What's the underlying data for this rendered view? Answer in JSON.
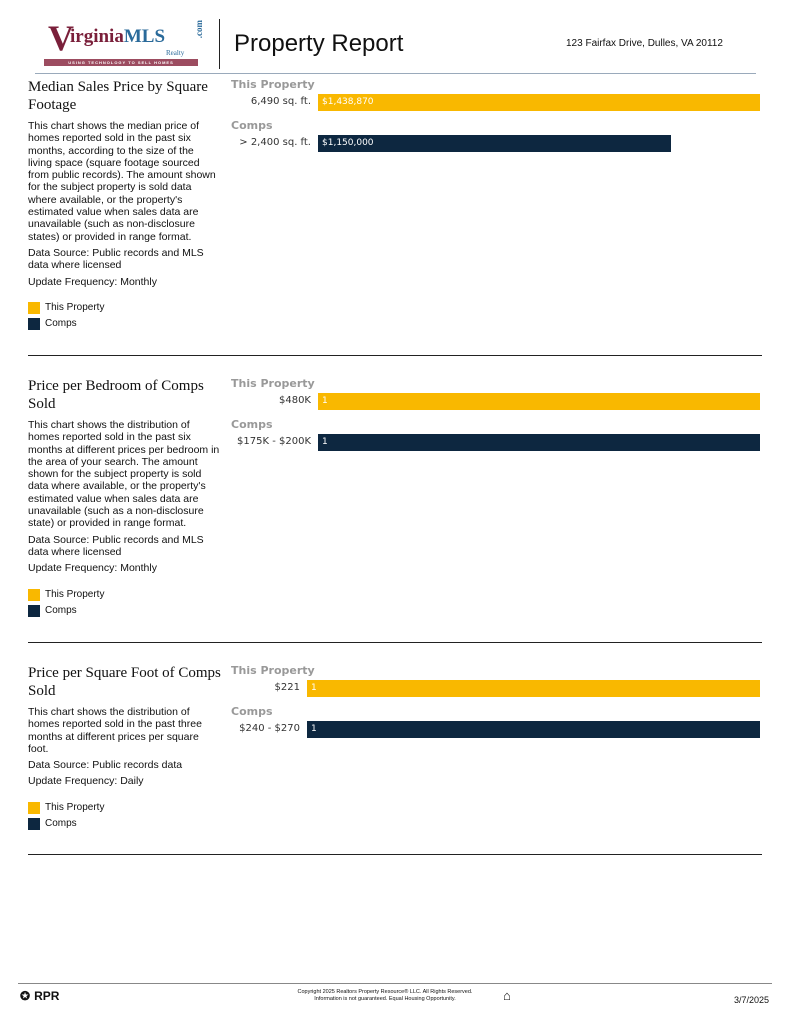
{
  "header": {
    "logo_text": "VirginiaMLS.com Realty",
    "logo_tagline": "USING TECHNOLOGY TO SELL HOMES",
    "title": "Property Report",
    "address": "123 Fairfax Drive, Dulles, VA 20112"
  },
  "colors": {
    "this_property": "#F9B800",
    "comps": "#0D2740"
  },
  "legend": {
    "this_property": "This Property",
    "comps": "Comps"
  },
  "sections": [
    {
      "title": "Median Sales Price by Square Footage",
      "description": "This chart shows the median price of homes reported sold in the past six months, according to the size of the living space (square footage sourced from public records). The amount shown for the subject property is sold data where available, or the property's estimated value when sales data are unavailable (such as non-disclosure states) or provided in range format.",
      "source": "Data Source: Public records and MLS data where licensed",
      "frequency": "Update Frequency: Monthly"
    },
    {
      "title": "Price per Bedroom of Comps Sold",
      "description": "This chart shows the distribution of homes reported sold in the past six months at different prices per bedroom in the area of your search. The amount shown for the subject property is sold data where available, or the property's estimated value when sales data are unavailable (such as a non-disclosure state) or provided in range format.",
      "source": "Data Source: Public records and MLS data where licensed",
      "frequency": "Update Frequency: Monthly"
    },
    {
      "title": "Price per Square Foot of Comps Sold",
      "description": "This chart shows the distribution of homes reported sold in the past three months at different prices per square foot.",
      "source": "Data Source: Public records data",
      "frequency": "Update Frequency: Daily"
    }
  ],
  "chart_data": [
    {
      "type": "bar",
      "orientation": "horizontal",
      "groups": [
        "This Property",
        "Comps"
      ],
      "categories": [
        "6,490 sq. ft.",
        "> 2,400 sq. ft."
      ],
      "values": [
        1438870,
        1150000
      ],
      "data_labels": [
        "$1,438,870",
        "$1,150,000"
      ]
    },
    {
      "type": "bar",
      "orientation": "horizontal",
      "groups": [
        "This Property",
        "Comps"
      ],
      "categories": [
        "$480K",
        "$175K - $200K"
      ],
      "values": [
        1,
        1
      ],
      "data_labels": [
        "1",
        "1"
      ]
    },
    {
      "type": "bar",
      "orientation": "horizontal",
      "groups": [
        "This Property",
        "Comps"
      ],
      "categories": [
        "$221",
        "$240 - $270"
      ],
      "values": [
        1,
        1
      ],
      "data_labels": [
        "1",
        "1"
      ]
    }
  ],
  "footer": {
    "brand": "RPR",
    "copyright_line1": "Copyright 2025 Realtors Property Resource® LLC. All Rights Reserved.",
    "copyright_line2": "Information is not guaranteed. Equal Housing Opportunity.",
    "date": "3/7/2025"
  }
}
